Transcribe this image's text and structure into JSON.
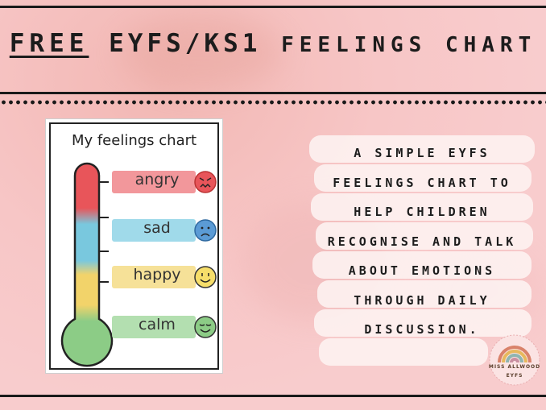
{
  "header": {
    "free": "FREE",
    "title_part1": "EYFS/KS1",
    "title_part2": "FEELINGS CHART"
  },
  "poster": {
    "title": "My feelings chart",
    "feelings": [
      {
        "label": "angry",
        "color": "#e8555a",
        "face": "angry-face-icon"
      },
      {
        "label": "sad",
        "color": "#79c8de",
        "face": "sad-face-icon"
      },
      {
        "label": "happy",
        "color": "#f2d36a",
        "face": "happy-face-icon"
      },
      {
        "label": "calm",
        "color": "#8ccc86",
        "face": "calm-face-icon"
      }
    ]
  },
  "description": {
    "lines": [
      "A SIMPLE EYFS",
      "FEELINGS CHART TO",
      "HELP CHILDREN",
      "RECOGNISE AND TALK",
      "ABOUT EMOTIONS",
      "THROUGH DAILY",
      "DISCUSSION."
    ]
  },
  "logo": {
    "line1": "MISS ALLWOOD",
    "line2": "EYFS"
  },
  "colors": {
    "background": "#f8c9ca",
    "ink": "#1c1c1c",
    "red": "#e8555a",
    "blue": "#79c8de",
    "yellow": "#f2d36a",
    "green": "#8ccc86"
  }
}
